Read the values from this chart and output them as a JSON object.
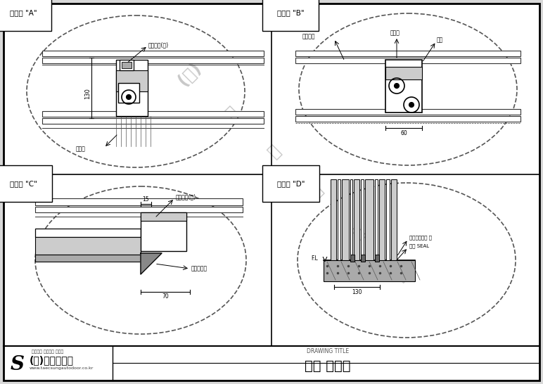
{
  "title": "패닉 자동문",
  "drawing_title_label": "DRAWING TITLE",
  "company_name": "(주)태성자동문",
  "company_sub": "대한민국 자동문의 자존심",
  "company_url": "www.taecsungautodoor.co.kr",
  "panel_A": "상세도 \"A\"",
  "panel_B": "상세도 \"B\"",
  "panel_C": "상세도 \"C\"",
  "panel_D": "상세도 \"D\"",
  "watermark": [
    [
      570,
      390,
      "자",
      45
    ],
    [
      510,
      330,
      "동",
      45
    ],
    [
      450,
      270,
      "문",
      45
    ],
    [
      390,
      215,
      "성",
      45
    ],
    [
      330,
      160,
      "태",
      45
    ],
    [
      270,
      105,
      "(주)",
      45
    ]
  ],
  "bg": "#d8d8d8",
  "white": "#ffffff",
  "black": "#111111",
  "gray1": "#cccccc",
  "gray2": "#aaaaaa",
  "gray3": "#888888",
  "gray4": "#666666",
  "gray5": "#eeeeee"
}
